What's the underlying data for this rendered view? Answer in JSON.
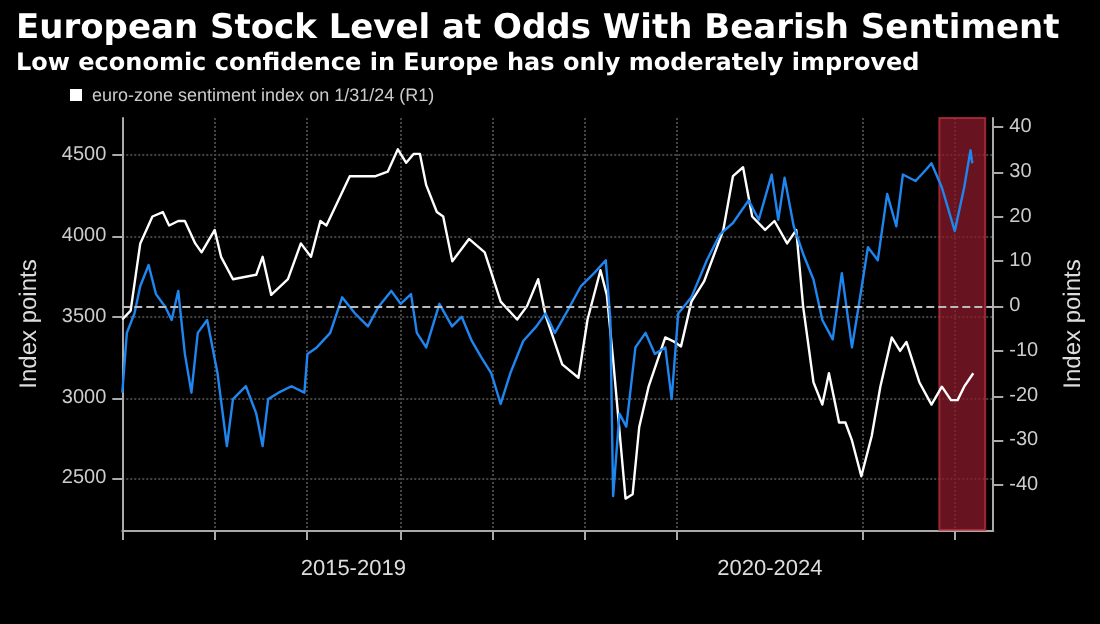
{
  "chart_data": {
    "type": "line",
    "title": "European Stock Level at Odds With Bearish Sentiment",
    "subtitle": "Low economic confidence in Europe has only moderately improved",
    "ylabel": "Index points",
    "y2label": "Index points",
    "xlim": [
      "2015-01-01",
      "2024-06-01"
    ],
    "xticks": [
      {
        "value": "2015-01-01",
        "label": null
      },
      {
        "value": "2016-01-01",
        "label": null
      },
      {
        "value": "2017-01-01",
        "label": null
      },
      {
        "value": "2017-07-01",
        "label": "2015-2019"
      },
      {
        "value": "2018-01-01",
        "label": null
      },
      {
        "value": "2019-01-01",
        "label": null
      },
      {
        "value": "2020-01-01",
        "label": null
      },
      {
        "value": "2021-01-01",
        "label": null
      },
      {
        "value": "2022-01-01",
        "label": "2020-2024"
      },
      {
        "value": "2023-01-01",
        "label": null
      },
      {
        "value": "2024-01-01",
        "label": null
      }
    ],
    "ylim": [
      2180,
      4730
    ],
    "yticks": [
      2500,
      3000,
      3500,
      4000,
      4500
    ],
    "y2lim": [
      -50,
      42
    ],
    "y2ticks": [
      -40,
      -30,
      -20,
      -10,
      0,
      10,
      20,
      30,
      40
    ],
    "grid": true,
    "legend": "top left",
    "line_style": "solid",
    "marker": "none",
    "ref_lines": [
      {
        "axis": "y2",
        "value": 0,
        "label": null,
        "color": "#bbbbbb",
        "line_style": "dashed"
      }
    ],
    "bands": [
      {
        "axis": "x",
        "from": "2023-11-01",
        "to": "2024-04-30",
        "label": null,
        "color": "#8b1a2b"
      }
    ],
    "series": [
      {
        "name": "euro-zone sentiment index on 1/31/24 (R1)",
        "color": "#ffffff",
        "axis": "y2",
        "x": [
          "2015-01-01",
          "2015-02-03",
          "2015-03-13",
          "2015-04-30",
          "2015-06-10",
          "2015-07-05",
          "2015-08-10",
          "2015-09-05",
          "2015-10-16",
          "2015-11-10",
          "2016-01-01",
          "2016-01-26",
          "2016-03-13",
          "2016-06-13",
          "2016-07-08",
          "2016-08-11",
          "2016-10-16",
          "2016-12-06",
          "2017-01-15",
          "2017-02-21",
          "2017-03-17",
          "2017-06-17",
          "2017-07-23",
          "2017-09-27",
          "2017-11-14",
          "2017-12-24",
          "2018-01-26",
          "2018-02-25",
          "2018-03-21",
          "2018-04-15",
          "2018-05-27",
          "2018-06-21",
          "2018-07-27",
          "2018-10-01",
          "2018-12-02",
          "2019-02-03",
          "2019-04-09",
          "2019-05-18",
          "2019-07-01",
          "2019-07-30",
          "2019-10-04",
          "2019-12-07",
          "2020-01-12",
          "2020-03-03",
          "2020-03-28",
          "2020-04-22",
          "2020-06-10",
          "2020-07-08",
          "2020-08-03",
          "2020-09-09",
          "2020-11-14",
          "2020-12-20",
          "2021-01-15",
          "2021-02-25",
          "2021-04-16",
          "2021-07-01",
          "2021-08-08",
          "2021-09-17",
          "2021-10-23",
          "2021-12-13",
          "2022-01-19",
          "2022-03-10",
          "2022-04-15",
          "2022-05-12",
          "2022-06-22",
          "2022-07-27",
          "2022-08-22",
          "2022-10-01",
          "2022-10-26",
          "2022-11-21",
          "2022-12-28",
          "2023-02-07",
          "2023-03-13",
          "2023-04-27",
          "2023-05-30",
          "2023-06-24",
          "2023-08-14",
          "2023-10-01",
          "2023-11-11",
          "2023-12-17",
          "2024-01-12",
          "2024-02-07",
          "2024-03-14"
        ],
        "values": [
          -3,
          -1,
          14,
          20,
          21,
          18,
          19,
          19,
          14,
          12,
          17,
          11,
          6,
          7,
          11,
          2.5,
          6,
          14,
          11,
          19,
          18,
          29,
          29,
          29,
          30,
          35,
          32,
          34,
          34,
          27,
          21,
          20,
          10,
          15,
          12,
          1,
          -3,
          0,
          6,
          -2,
          -13,
          -16,
          -3,
          8,
          2.5,
          -12,
          -43,
          -42,
          -27,
          -18,
          -7,
          -8,
          -9,
          1,
          5.5,
          17,
          29,
          31,
          20,
          17,
          19,
          14,
          17,
          0,
          -17,
          -22,
          -15,
          -26,
          -26,
          -30,
          -38,
          -29,
          -18,
          -7,
          -10,
          -8,
          -17,
          -22,
          -18,
          -21,
          -21,
          -18,
          -15
        ]
      },
      {
        "color": "#1f86f0",
        "axis": "y",
        "x": [
          "2015-01-01",
          "2015-01-19",
          "2015-02-18",
          "2015-03-13",
          "2015-04-15",
          "2015-05-14",
          "2015-06-20",
          "2015-07-15",
          "2015-08-10",
          "2015-09-05",
          "2015-10-01",
          "2015-10-26",
          "2015-12-02",
          "2016-01-12",
          "2016-02-18",
          "2016-03-13",
          "2016-05-03",
          "2016-06-13",
          "2016-07-08",
          "2016-07-30",
          "2016-09-09",
          "2016-10-30",
          "2016-12-20",
          "2017-01-01",
          "2017-02-07",
          "2017-04-01",
          "2017-05-18",
          "2017-07-08",
          "2017-08-28",
          "2017-10-08",
          "2017-11-28",
          "2018-01-04",
          "2018-02-14",
          "2018-03-09",
          "2018-04-15",
          "2018-06-06",
          "2018-07-26",
          "2018-09-02",
          "2018-10-12",
          "2018-11-18",
          "2018-12-28",
          "2019-02-03",
          "2019-03-13",
          "2019-05-03",
          "2019-06-24",
          "2019-07-30",
          "2019-09-05",
          "2019-10-26",
          "2019-12-17",
          "2020-02-07",
          "2020-03-24",
          "2020-04-11",
          "2020-04-22",
          "2020-05-17",
          "2020-06-13",
          "2020-07-19",
          "2020-08-28",
          "2020-10-04",
          "2020-11-14",
          "2020-12-09",
          "2021-01-04",
          "2021-02-25",
          "2021-04-27",
          "2021-06-18",
          "2021-08-08",
          "2021-10-09",
          "2021-11-18",
          "2022-01-08",
          "2022-02-03",
          "2022-02-28",
          "2022-04-05",
          "2022-05-12",
          "2022-06-22",
          "2022-07-27",
          "2022-09-06",
          "2022-10-12",
          "2022-11-21",
          "2022-12-17",
          "2023-01-23",
          "2023-03-03",
          "2023-04-09",
          "2023-05-15",
          "2023-06-10",
          "2023-07-30",
          "2023-09-09",
          "2023-10-01",
          "2023-11-11",
          "2024-01-01",
          "2024-02-07",
          "2024-03-03",
          "2024-03-10"
        ],
        "values": [
          3030,
          3400,
          3520,
          3690,
          3820,
          3640,
          3560,
          3480,
          3660,
          3270,
          3030,
          3400,
          3480,
          3150,
          2700,
          2990,
          3070,
          2900,
          2700,
          2990,
          3030,
          3070,
          3030,
          3270,
          3310,
          3400,
          3620,
          3520,
          3440,
          3560,
          3660,
          3580,
          3640,
          3400,
          3310,
          3580,
          3440,
          3500,
          3350,
          3250,
          3150,
          2960,
          3150,
          3350,
          3440,
          3520,
          3400,
          3540,
          3690,
          3770,
          3850,
          3480,
          2390,
          2900,
          2820,
          3310,
          3400,
          3270,
          3310,
          2990,
          3520,
          3620,
          3850,
          4010,
          4080,
          4220,
          4100,
          4380,
          4100,
          4360,
          4060,
          3890,
          3730,
          3480,
          3360,
          3770,
          3310,
          3560,
          3930,
          3850,
          4260,
          4060,
          4380,
          4340,
          4410,
          4450,
          4300,
          4030,
          4300,
          4530,
          4450
        ]
      }
    ]
  }
}
